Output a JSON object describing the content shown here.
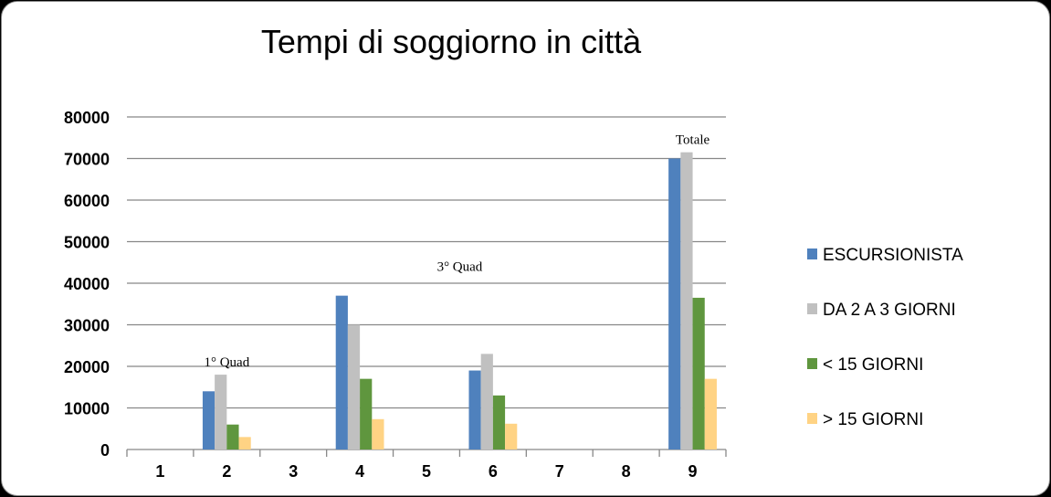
{
  "chart_data": {
    "type": "bar",
    "title": "Tempi di soggiorno in città",
    "categories": [
      "1",
      "2",
      "3",
      "4",
      "5",
      "6",
      "7",
      "8",
      "9"
    ],
    "ylim": [
      0,
      80000
    ],
    "yticks": [
      0,
      10000,
      20000,
      30000,
      40000,
      50000,
      60000,
      70000,
      80000
    ],
    "ytick_labels": [
      "0",
      "10000",
      "20000",
      "30000",
      "40000",
      "50000",
      "60000",
      "70000",
      "80000"
    ],
    "grid": true,
    "legend_position": "right",
    "series": [
      {
        "name": "ESCURSIONISTA",
        "color": "#4f81bd",
        "values": [
          null,
          14000,
          null,
          37000,
          null,
          19000,
          null,
          null,
          70000
        ]
      },
      {
        "name": "DA 2 A 3 GIORNI",
        "color": "#c0c0c0",
        "values": [
          null,
          18000,
          null,
          30000,
          null,
          23000,
          null,
          null,
          71500
        ]
      },
      {
        "name": "< 15 GIORNI",
        "color": "#5f963e",
        "values": [
          null,
          6000,
          null,
          17000,
          null,
          13000,
          null,
          null,
          36500
        ]
      },
      {
        "name": "> 15 GIORNI",
        "color": "#ffd384",
        "values": [
          null,
          3000,
          null,
          7300,
          null,
          6200,
          null,
          null,
          17000
        ]
      }
    ],
    "annotations": [
      {
        "text": "1° Quad",
        "category": "2",
        "y": 20000
      },
      {
        "text": "3° Quad",
        "category": "5.5",
        "y": 43000
      },
      {
        "text": "Totale",
        "category": "9",
        "y": 73500
      }
    ]
  }
}
